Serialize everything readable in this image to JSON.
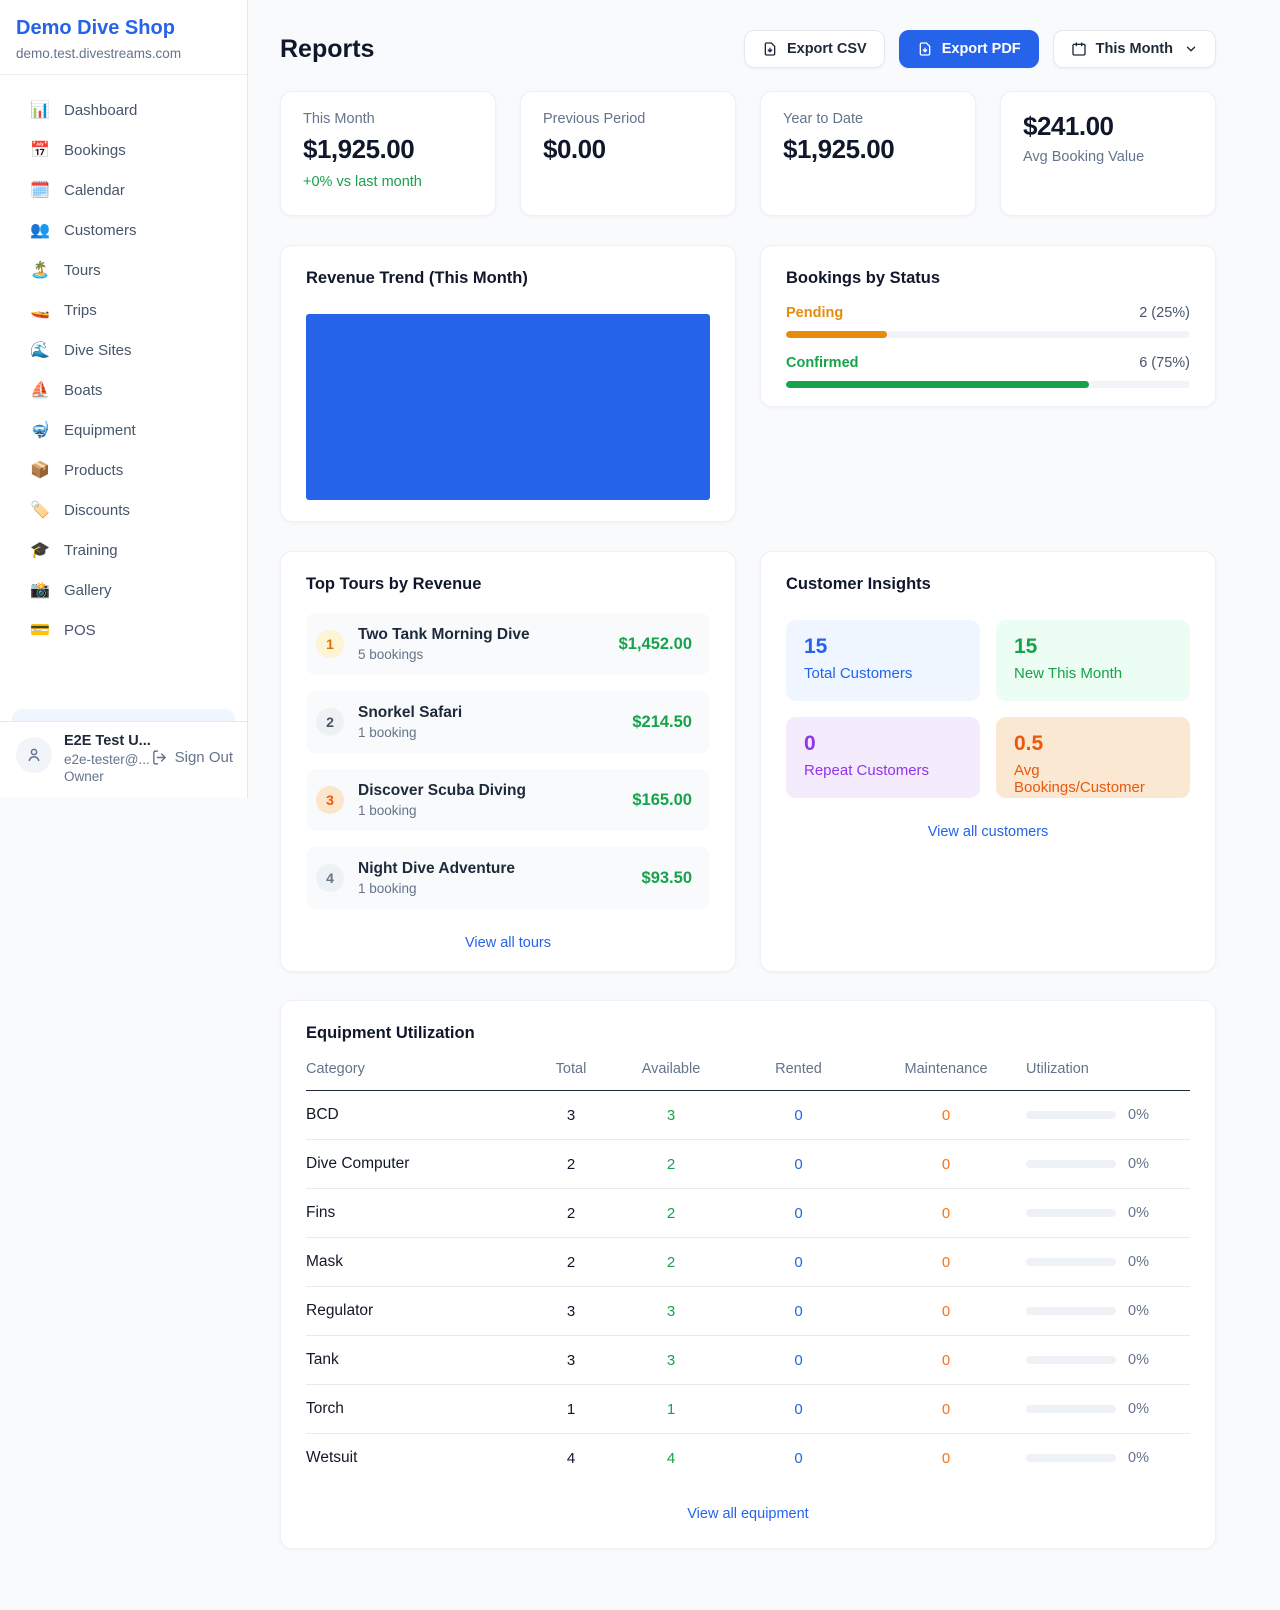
{
  "palette": {
    "accent_blue": "#2563eb",
    "green": "#16a34a",
    "pending_orange": "#e88a0b",
    "maintenance_orange": "#f97316",
    "deep_orange": "#ea580c",
    "purple": "#9333ea",
    "page_bg": "#f8fafc"
  },
  "sidebar": {
    "brand_name": "Demo Dive Shop",
    "brand_domain": "demo.test.divestreams.com",
    "nav": [
      {
        "icon": "📊",
        "label": "Dashboard"
      },
      {
        "icon": "📅",
        "label": "Bookings"
      },
      {
        "icon": "🗓️",
        "label": "Calendar"
      },
      {
        "icon": "👥",
        "label": "Customers"
      },
      {
        "icon": "🏝️",
        "label": "Tours"
      },
      {
        "icon": "🚤",
        "label": "Trips"
      },
      {
        "icon": "🌊",
        "label": "Dive Sites"
      },
      {
        "icon": "⛵",
        "label": "Boats"
      },
      {
        "icon": "🤿",
        "label": "Equipment"
      },
      {
        "icon": "📦",
        "label": "Products"
      },
      {
        "icon": "🏷️",
        "label": "Discounts"
      },
      {
        "icon": "🎓",
        "label": "Training"
      },
      {
        "icon": "📸",
        "label": "Gallery"
      },
      {
        "icon": "💳",
        "label": "POS"
      }
    ],
    "user": {
      "name": "E2E Test U...",
      "email": "e2e-tester@...",
      "role": "Owner",
      "sign_out_label": "Sign Out"
    }
  },
  "header": {
    "title": "Reports",
    "export_csv_label": "Export CSV",
    "export_pdf_label": "Export PDF",
    "period_label": "This Month"
  },
  "stats": [
    {
      "label": "This Month",
      "value": "$1,925.00",
      "delta": "+0% vs last month",
      "label_below": ""
    },
    {
      "label": "Previous Period",
      "value": "$0.00",
      "delta": "",
      "label_below": ""
    },
    {
      "label": "Year to Date",
      "value": "$1,925.00",
      "delta": "",
      "label_below": ""
    },
    {
      "label": "",
      "value": "$241.00",
      "delta": "",
      "label_below": "Avg Booking Value"
    }
  ],
  "revenue_trend": {
    "title": "Revenue Trend (This Month)",
    "bar_color": "#2563eb"
  },
  "bookings_by_status": {
    "title": "Bookings by Status",
    "rows": [
      {
        "label": "Pending",
        "count_text": "2 (25%)",
        "pct": 25,
        "color": "#e88a0b"
      },
      {
        "label": "Confirmed",
        "count_text": "6 (75%)",
        "pct": 75,
        "color": "#16a34a"
      }
    ]
  },
  "top_tours": {
    "title": "Top Tours by Revenue",
    "view_all": "View all tours",
    "rows": [
      {
        "rank": "1",
        "name": "Two Tank Morning Dive",
        "bookings": "5 bookings",
        "revenue": "$1,452.00",
        "badge_bg": "#fdf4d3",
        "badge_fg": "#d97706"
      },
      {
        "rank": "2",
        "name": "Snorkel Safari",
        "bookings": "1 booking",
        "revenue": "$214.50",
        "badge_bg": "#eef1f4",
        "badge_fg": "#475569"
      },
      {
        "rank": "3",
        "name": "Discover Scuba Diving",
        "bookings": "1 booking",
        "revenue": "$165.00",
        "badge_bg": "#fbe6cc",
        "badge_fg": "#ea580c"
      },
      {
        "rank": "4",
        "name": "Night Dive Adventure",
        "bookings": "1 booking",
        "revenue": "$93.50",
        "badge_bg": "#eef1f4",
        "badge_fg": "#64748b"
      }
    ]
  },
  "customer_insights": {
    "title": "Customer Insights",
    "view_all": "View all customers",
    "tiles": [
      {
        "value": "15",
        "label": "Total Customers",
        "bg": "#eff6ff",
        "fg": "#2563eb"
      },
      {
        "value": "15",
        "label": "New This Month",
        "bg": "#ecfdf3",
        "fg": "#16a34a"
      },
      {
        "value": "0",
        "label": "Repeat Customers",
        "bg": "#f4ebfd",
        "fg": "#9333ea"
      },
      {
        "value": "0.5",
        "label": "Avg Bookings/Customer",
        "bg": "#fbe8d2",
        "fg": "#ea580c"
      }
    ]
  },
  "equipment": {
    "title": "Equipment Utilization",
    "view_all": "View all equipment",
    "columns": [
      "Category",
      "Total",
      "Available",
      "Rented",
      "Maintenance",
      "Utilization"
    ],
    "rows": [
      {
        "category": "BCD",
        "total": "3",
        "available": "3",
        "rented": "0",
        "maintenance": "0",
        "utilization": "0%",
        "util_pct": 0
      },
      {
        "category": "Dive Computer",
        "total": "2",
        "available": "2",
        "rented": "0",
        "maintenance": "0",
        "utilization": "0%",
        "util_pct": 0
      },
      {
        "category": "Fins",
        "total": "2",
        "available": "2",
        "rented": "0",
        "maintenance": "0",
        "utilization": "0%",
        "util_pct": 0
      },
      {
        "category": "Mask",
        "total": "2",
        "available": "2",
        "rented": "0",
        "maintenance": "0",
        "utilization": "0%",
        "util_pct": 0
      },
      {
        "category": "Regulator",
        "total": "3",
        "available": "3",
        "rented": "0",
        "maintenance": "0",
        "utilization": "0%",
        "util_pct": 0
      },
      {
        "category": "Tank",
        "total": "3",
        "available": "3",
        "rented": "0",
        "maintenance": "0",
        "utilization": "0%",
        "util_pct": 0
      },
      {
        "category": "Torch",
        "total": "1",
        "available": "1",
        "rented": "0",
        "maintenance": "0",
        "utilization": "0%",
        "util_pct": 0
      },
      {
        "category": "Wetsuit",
        "total": "4",
        "available": "4",
        "rented": "0",
        "maintenance": "0",
        "utilization": "0%",
        "util_pct": 0
      }
    ]
  }
}
